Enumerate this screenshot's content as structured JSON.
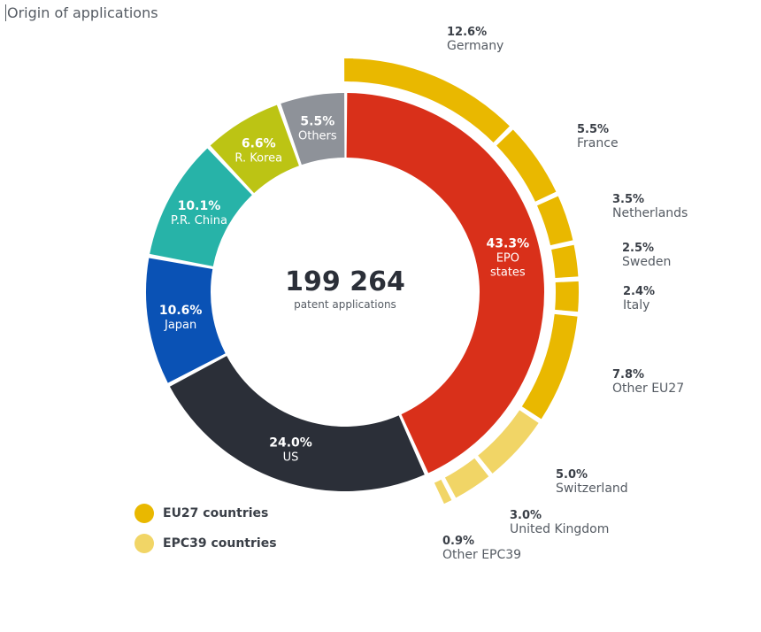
{
  "title": "Origin of applications",
  "chart_data": {
    "type": "donut",
    "center_value": "199 264",
    "center_label": "patent applications",
    "inner_ring": [
      {
        "name": "EPO states",
        "label_lines": [
          "EPO",
          "states"
        ],
        "pct_label": "43.3%",
        "value": 43.3,
        "color": "#d9301a"
      },
      {
        "name": "US",
        "label_lines": [
          "US"
        ],
        "pct_label": "24.0%",
        "value": 24.0,
        "color": "#2b2f38"
      },
      {
        "name": "Japan",
        "label_lines": [
          "Japan"
        ],
        "pct_label": "10.6%",
        "value": 10.6,
        "color": "#0a52b5"
      },
      {
        "name": "P.R. China",
        "label_lines": [
          "P.R. China"
        ],
        "pct_label": "10.1%",
        "value": 10.1,
        "color": "#27b3a8"
      },
      {
        "name": "R. Korea",
        "label_lines": [
          "R. Korea"
        ],
        "pct_label": "6.6%",
        "value": 6.6,
        "color": "#bcc414"
      },
      {
        "name": "Others",
        "label_lines": [
          "Others"
        ],
        "pct_label": "5.5%",
        "value": 5.5,
        "color": "#8e9299"
      }
    ],
    "outer_ring": [
      {
        "name": "Germany",
        "pct_label": "12.6%",
        "value": 12.6,
        "group": "EU27"
      },
      {
        "name": "France",
        "pct_label": "5.5%",
        "value": 5.5,
        "group": "EU27"
      },
      {
        "name": "Netherlands",
        "pct_label": "3.5%",
        "value": 3.5,
        "group": "EU27"
      },
      {
        "name": "Sweden",
        "pct_label": "2.5%",
        "value": 2.5,
        "group": "EU27"
      },
      {
        "name": "Italy",
        "pct_label": "2.4%",
        "value": 2.4,
        "group": "EU27"
      },
      {
        "name": "Other EU27",
        "pct_label": "7.8%",
        "value": 7.8,
        "group": "EU27"
      },
      {
        "name": "Switzerland",
        "pct_label": "5.0%",
        "value": 5.0,
        "group": "EPC39"
      },
      {
        "name": "United Kingdom",
        "pct_label": "3.0%",
        "value": 3.0,
        "group": "EPC39"
      },
      {
        "name": "Other EPC39",
        "pct_label": "0.9%",
        "value": 0.9,
        "group": "EPC39"
      }
    ],
    "legend": [
      {
        "label": "EU27 countries",
        "group": "EU27",
        "color": "#e9b800"
      },
      {
        "label": "EPC39 countries",
        "group": "EPC39",
        "color": "#f1d566"
      }
    ]
  }
}
